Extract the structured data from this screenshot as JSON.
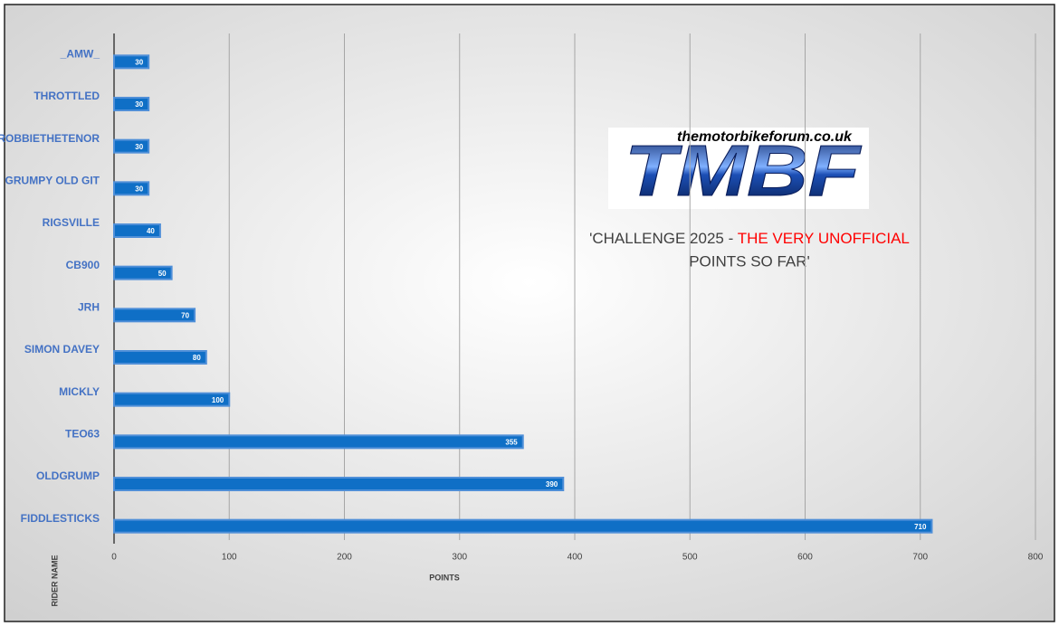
{
  "chart_data": {
    "type": "bar",
    "orientation": "horizontal",
    "title_parts": [
      {
        "text": "'CHALLENGE 2025 - ",
        "color": "#404040"
      },
      {
        "text": "THE VERY UNOFFICIAL",
        "color": "#ff0000"
      },
      {
        "text": "POINTS SO FAR'",
        "color": "#404040"
      }
    ],
    "logo": {
      "url": "themotorbikeforum.co.uk",
      "text": "TMBF"
    },
    "categories": [
      "_AMW_",
      "THROTTLED",
      "ROBBIETHETENOR",
      "GRUMPY OLD GIT",
      "RIGSVILLE",
      "CB900",
      "JRH",
      "SIMON DAVEY",
      "MICKLY",
      "TEO63",
      "OLDGRUMP",
      "FIDDLESTICKS"
    ],
    "values": [
      30,
      30,
      30,
      30,
      40,
      50,
      70,
      80,
      100,
      355,
      390,
      710
    ],
    "color": "#0f6fc6",
    "xlabel": "POINTS",
    "ylabel": "RIDER NAME",
    "xlim": [
      0,
      800
    ],
    "xticks": [
      0,
      100,
      200,
      300,
      400,
      500,
      600,
      700,
      800
    ],
    "grid": true
  }
}
